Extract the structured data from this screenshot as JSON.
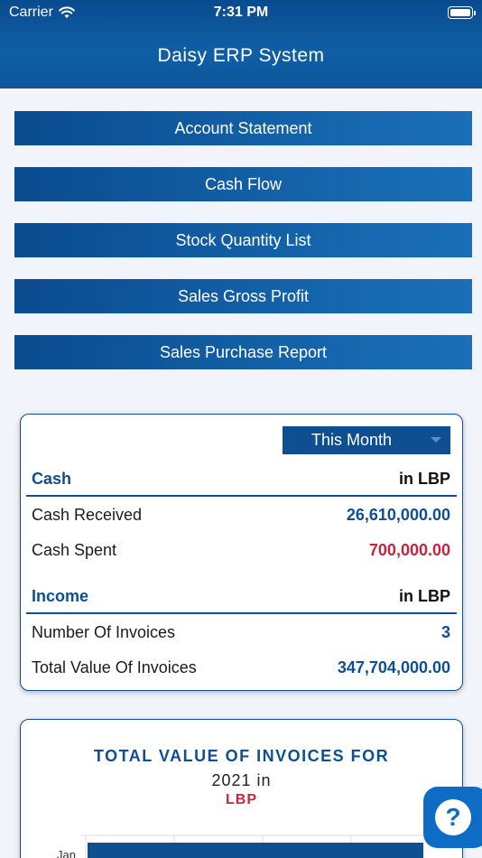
{
  "status_bar": {
    "carrier": "Carrier",
    "time": "7:31 PM"
  },
  "header": {
    "title": "Daisy ERP System"
  },
  "menu": [
    {
      "label": "Account Statement"
    },
    {
      "label": "Cash Flow"
    },
    {
      "label": "Stock Quantity List"
    },
    {
      "label": "Sales Gross Profit"
    },
    {
      "label": "Sales Purchase Report"
    }
  ],
  "summary": {
    "period": "This Month",
    "cash": {
      "title": "Cash",
      "unit": "in LBP",
      "received_label": "Cash Received",
      "received_value": "26,610,000.00",
      "spent_label": "Cash Spent",
      "spent_value": "700,000.00"
    },
    "income": {
      "title": "Income",
      "unit": "in LBP",
      "invoices_label": "Number Of Invoices",
      "invoices_value": "3",
      "total_label": "Total Value Of Invoices",
      "total_value": "347,704,000.00"
    }
  },
  "chart": {
    "title": "TOTAL VALUE OF INVOICES FOR",
    "subtitle": "2021 in",
    "unit": "LBP",
    "first_category": "Jan"
  },
  "colors": {
    "primary": "#0d4f91",
    "negative": "#c8233a",
    "help": "#0f6cc4"
  },
  "icons": {
    "wifi": "wifi-icon",
    "battery": "battery-icon",
    "help": "question-icon"
  }
}
